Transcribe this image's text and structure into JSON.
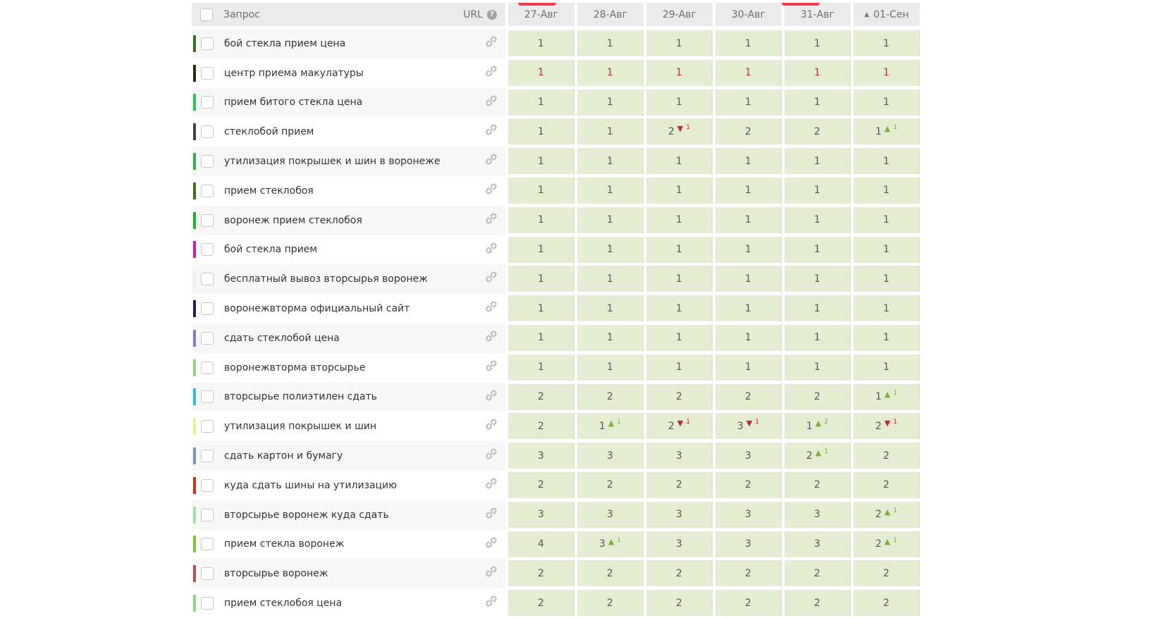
{
  "header": {
    "query_label": "Запрос",
    "url_label": "URL",
    "help_glyph": "?",
    "dates": [
      "27-Авг",
      "28-Авг",
      "29-Авг",
      "30-Авг",
      "31-Авг",
      "01-Сен"
    ],
    "sort_indicator": "▲"
  },
  "colors": {
    "accent_red": "#f03c50",
    "rank_up": "#7bb33a",
    "rank_down": "#c0262c",
    "cell_bg": "#e4ecd2"
  },
  "rows": [
    {
      "query": "бой стекла прием цена",
      "color": "#3c6e28",
      "positions": [
        {
          "v": "1"
        },
        {
          "v": "1"
        },
        {
          "v": "1"
        },
        {
          "v": "1"
        },
        {
          "v": "1"
        },
        {
          "v": "1"
        }
      ]
    },
    {
      "query": "центр приема макулатуры",
      "color": "#1e3214",
      "highlight": true,
      "positions": [
        {
          "v": "1"
        },
        {
          "v": "1"
        },
        {
          "v": "1"
        },
        {
          "v": "1"
        },
        {
          "v": "1"
        },
        {
          "v": "1"
        }
      ]
    },
    {
      "query": "прием битого стекла цена",
      "color": "#28c850",
      "positions": [
        {
          "v": "1"
        },
        {
          "v": "1"
        },
        {
          "v": "1"
        },
        {
          "v": "1"
        },
        {
          "v": "1"
        },
        {
          "v": "1"
        }
      ]
    },
    {
      "query": "стеклобой прием",
      "color": "#3c463c",
      "positions": [
        {
          "v": "1"
        },
        {
          "v": "1"
        },
        {
          "v": "2",
          "dir": "down",
          "d": "1"
        },
        {
          "v": "2"
        },
        {
          "v": "2"
        },
        {
          "v": "1",
          "dir": "up",
          "d": "1"
        }
      ]
    },
    {
      "query": "утилизация покрышек и шин в воронеже",
      "color": "#3caa50",
      "positions": [
        {
          "v": "1"
        },
        {
          "v": "1"
        },
        {
          "v": "1"
        },
        {
          "v": "1"
        },
        {
          "v": "1"
        },
        {
          "v": "1"
        }
      ]
    },
    {
      "query": "прием стеклобоя",
      "color": "#466e1e",
      "positions": [
        {
          "v": "1"
        },
        {
          "v": "1"
        },
        {
          "v": "1"
        },
        {
          "v": "1"
        },
        {
          "v": "1"
        },
        {
          "v": "1"
        }
      ]
    },
    {
      "query": "воронеж прием стеклобоя",
      "color": "#1eb432",
      "positions": [
        {
          "v": "1"
        },
        {
          "v": "1"
        },
        {
          "v": "1"
        },
        {
          "v": "1"
        },
        {
          "v": "1"
        },
        {
          "v": "1"
        }
      ]
    },
    {
      "query": "бой стекла прием",
      "color": "#d21e96",
      "positions": [
        {
          "v": "1"
        },
        {
          "v": "1"
        },
        {
          "v": "1"
        },
        {
          "v": "1"
        },
        {
          "v": "1"
        },
        {
          "v": "1"
        }
      ]
    },
    {
      "query": "бесплатный вывоз вторсырья воронеж",
      "color": "#f0eaf5",
      "positions": [
        {
          "v": "1"
        },
        {
          "v": "1"
        },
        {
          "v": "1"
        },
        {
          "v": "1"
        },
        {
          "v": "1"
        },
        {
          "v": "1"
        }
      ]
    },
    {
      "query": "воронежвторма официальный сайт",
      "color": "#28186e",
      "positions": [
        {
          "v": "1"
        },
        {
          "v": "1"
        },
        {
          "v": "1"
        },
        {
          "v": "1"
        },
        {
          "v": "1"
        },
        {
          "v": "1"
        }
      ]
    },
    {
      "query": "сдать стеклобой цена",
      "color": "#8c78d2",
      "positions": [
        {
          "v": "1"
        },
        {
          "v": "1"
        },
        {
          "v": "1"
        },
        {
          "v": "1"
        },
        {
          "v": "1"
        },
        {
          "v": "1"
        }
      ]
    },
    {
      "query": "воронежвторма вторсырье",
      "color": "#96d282",
      "positions": [
        {
          "v": "1"
        },
        {
          "v": "1"
        },
        {
          "v": "1"
        },
        {
          "v": "1"
        },
        {
          "v": "1"
        },
        {
          "v": "1"
        }
      ]
    },
    {
      "query": "вторсырье полиэтилен сдать",
      "color": "#32bec8",
      "positions": [
        {
          "v": "2"
        },
        {
          "v": "2"
        },
        {
          "v": "2"
        },
        {
          "v": "2"
        },
        {
          "v": "2"
        },
        {
          "v": "1",
          "dir": "up",
          "d": "1"
        }
      ]
    },
    {
      "query": "утилизация покрышек и шин",
      "color": "#e6f096",
      "positions": [
        {
          "v": "2"
        },
        {
          "v": "1",
          "dir": "up",
          "d": "1"
        },
        {
          "v": "2",
          "dir": "down",
          "d": "1"
        },
        {
          "v": "3",
          "dir": "down",
          "d": "1"
        },
        {
          "v": "1",
          "dir": "up",
          "d": "2"
        },
        {
          "v": "2",
          "dir": "down",
          "d": "1"
        }
      ]
    },
    {
      "query": "сдать картон и бумагу",
      "color": "#7896b4",
      "positions": [
        {
          "v": "3"
        },
        {
          "v": "3"
        },
        {
          "v": "3"
        },
        {
          "v": "3"
        },
        {
          "v": "2",
          "dir": "up",
          "d": "1"
        },
        {
          "v": "2"
        }
      ]
    },
    {
      "query": "куда сдать шины на утилизацию",
      "color": "#d2321e",
      "positions": [
        {
          "v": "2"
        },
        {
          "v": "2"
        },
        {
          "v": "2"
        },
        {
          "v": "2"
        },
        {
          "v": "2"
        },
        {
          "v": "2"
        }
      ]
    },
    {
      "query": "вторсырье воронеж куда сдать",
      "color": "#aadcaa",
      "positions": [
        {
          "v": "3"
        },
        {
          "v": "3"
        },
        {
          "v": "3"
        },
        {
          "v": "3"
        },
        {
          "v": "3"
        },
        {
          "v": "2",
          "dir": "up",
          "d": "1"
        }
      ]
    },
    {
      "query": "прием стекла воронеж",
      "color": "#82c83c",
      "positions": [
        {
          "v": "4"
        },
        {
          "v": "3",
          "dir": "up",
          "d": "1"
        },
        {
          "v": "3"
        },
        {
          "v": "3"
        },
        {
          "v": "3"
        },
        {
          "v": "2",
          "dir": "up",
          "d": "1"
        }
      ]
    },
    {
      "query": "вторсырье воронеж",
      "color": "#b45050",
      "positions": [
        {
          "v": "2"
        },
        {
          "v": "2"
        },
        {
          "v": "2"
        },
        {
          "v": "2"
        },
        {
          "v": "2"
        },
        {
          "v": "2"
        }
      ]
    },
    {
      "query": "прием стеклобоя цена",
      "color": "#96d28c",
      "positions": [
        {
          "v": "2"
        },
        {
          "v": "2"
        },
        {
          "v": "2"
        },
        {
          "v": "2"
        },
        {
          "v": "2"
        },
        {
          "v": "2"
        }
      ]
    }
  ]
}
